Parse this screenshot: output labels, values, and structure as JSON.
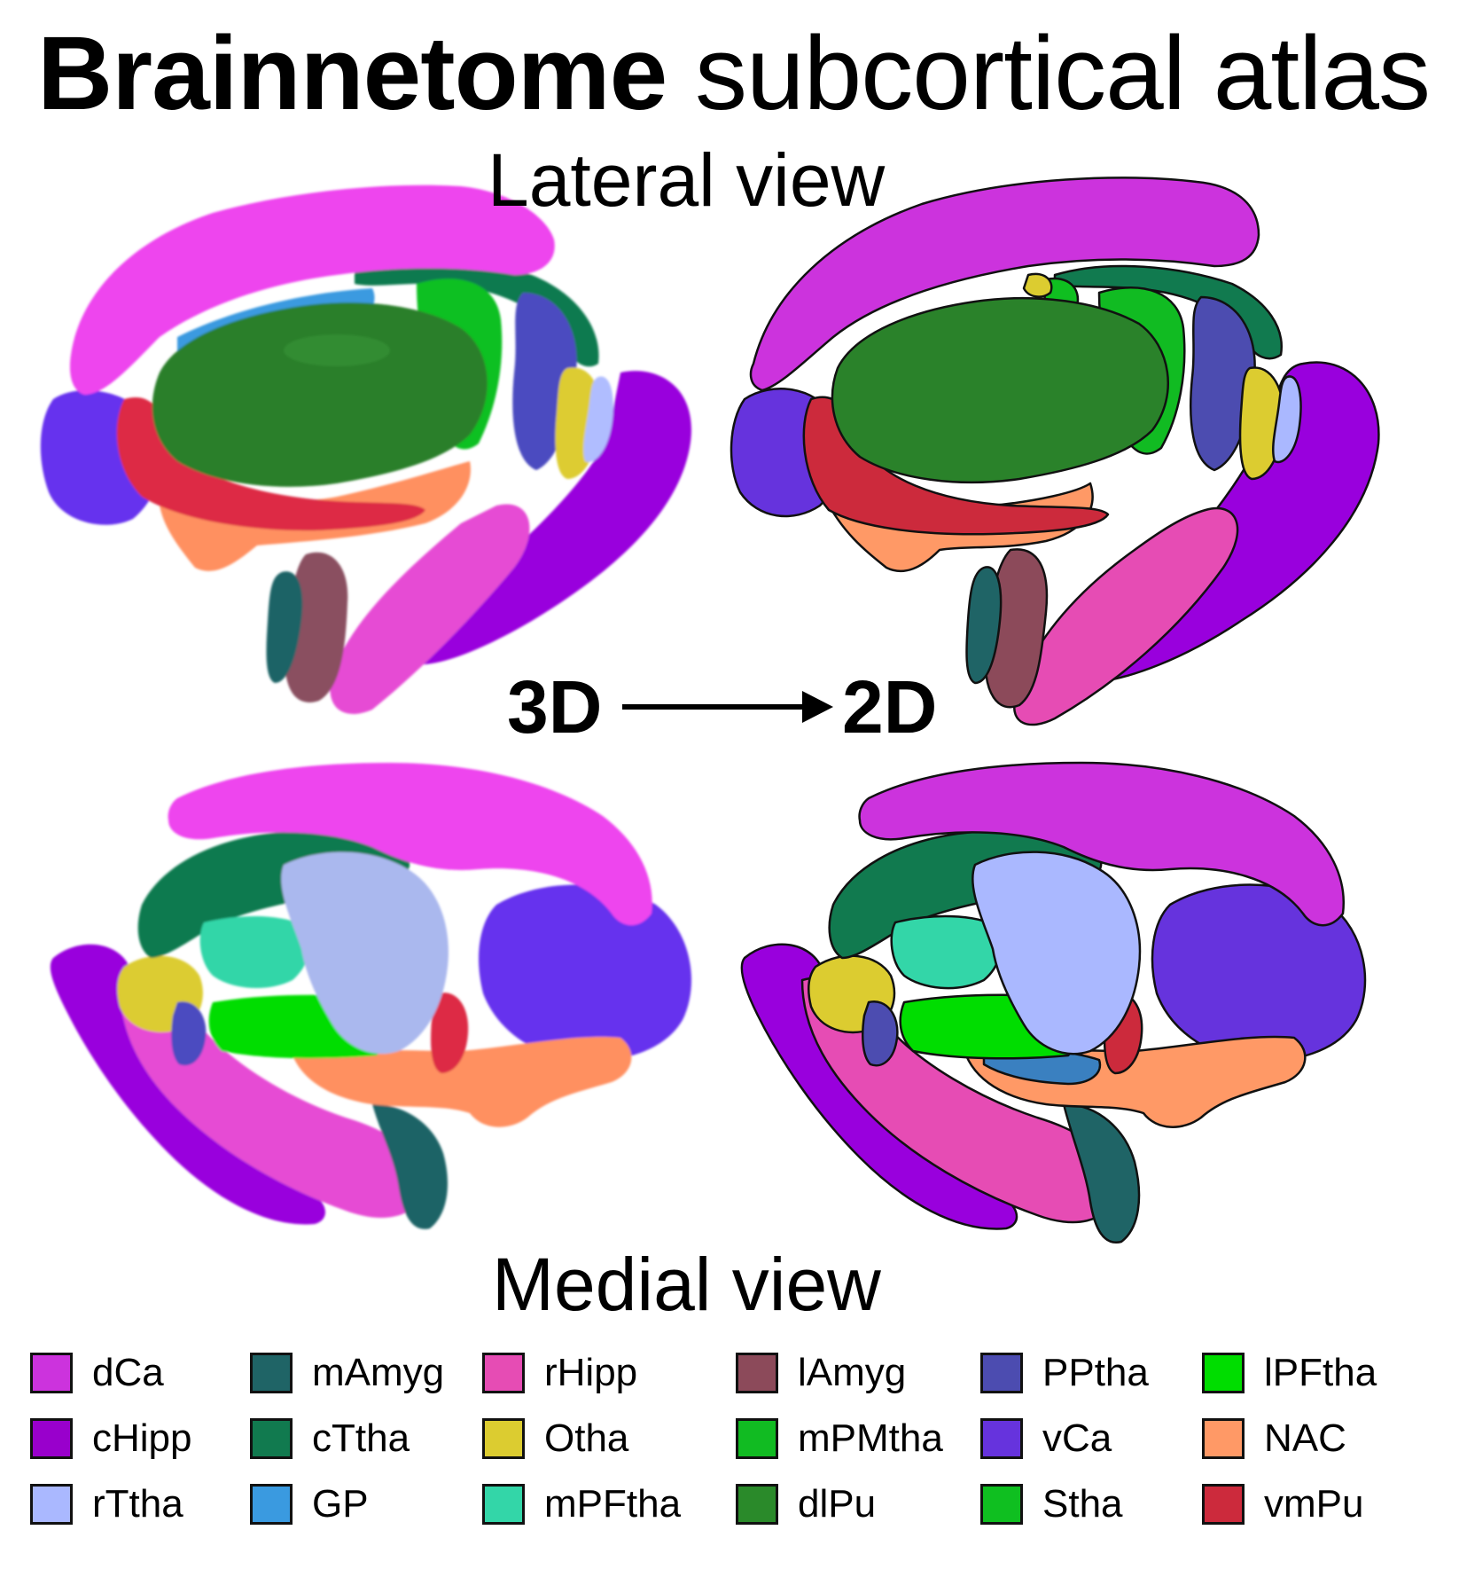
{
  "title": {
    "bold": "Brainnetome",
    "rest": " subcortical atlas"
  },
  "views": {
    "lateral": "Lateral view",
    "medial": "Medial view"
  },
  "transform": {
    "from": "3D",
    "to": "2D"
  },
  "legend": [
    {
      "label": "dCa",
      "color": "#cc33dd"
    },
    {
      "label": "cHipp",
      "color": "#9900cc"
    },
    {
      "label": "rTtha",
      "color": "#aab8ff"
    },
    {
      "label": "mAmyg",
      "color": "#1f6466"
    },
    {
      "label": "cTtha",
      "color": "#117a4f"
    },
    {
      "label": "GP",
      "color": "#3a9ae0"
    },
    {
      "label": "rHipp",
      "color": "#e64cb4"
    },
    {
      "label": "Otha",
      "color": "#dccc30"
    },
    {
      "label": "mPFtha",
      "color": "#33d6a8"
    },
    {
      "label": "lAmyg",
      "color": "#8c4a5a"
    },
    {
      "label": "mPMtha",
      "color": "#11bb22"
    },
    {
      "label": "dlPu",
      "color": "#2a8a2a"
    },
    {
      "label": "PPtha",
      "color": "#4c4cb0"
    },
    {
      "label": "vCa",
      "color": "#6633dd"
    },
    {
      "label": "Stha",
      "color": "#0fbf20"
    },
    {
      "label": "lPFtha",
      "color": "#00dd00"
    },
    {
      "label": "NAC",
      "color": "#ff9966"
    },
    {
      "label": "vmPu",
      "color": "#cc2a3c"
    }
  ]
}
